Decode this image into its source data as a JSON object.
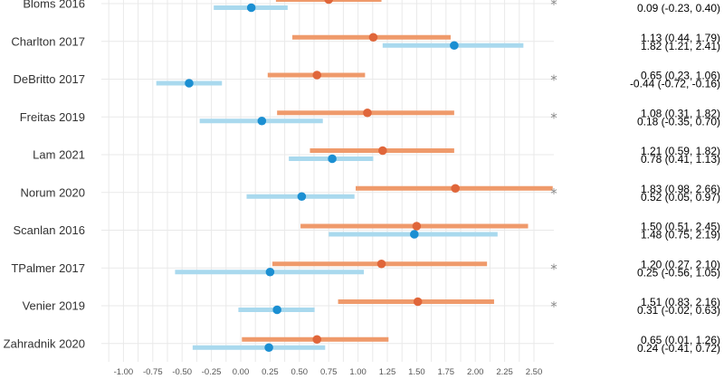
{
  "chart_data": {
    "type": "forest",
    "x_ticks": [
      "-1.00",
      "-0.75",
      "-0.50",
      "-0.25",
      "0.00",
      "0.25",
      "0.50",
      "0.75",
      "1.00",
      "1.25",
      "1.50",
      "1.75",
      "2.00",
      "2.25",
      "2.50"
    ],
    "xlim": [
      -1.2,
      2.75
    ],
    "grid": true,
    "colors": {
      "orange": "#ef9a6b",
      "orange_point": "#e0663a",
      "blue": "#a9d9ee",
      "blue_point": "#1b8fd2",
      "grid": "#e9e9e9",
      "star": "#8a8a8a"
    },
    "series": [
      {
        "key": "orange"
      },
      {
        "key": "blue"
      }
    ],
    "studies": [
      {
        "label": "Bloms 2016",
        "orange": {
          "est": 0.75,
          "lo": 0.3,
          "hi": 1.2,
          "text": ""
        },
        "blue": {
          "est": 0.09,
          "lo": -0.23,
          "hi": 0.4,
          "text": "0.09 (-0.23, 0.40)"
        },
        "star": "*"
      },
      {
        "label": "Charlton 2017",
        "orange": {
          "est": 1.13,
          "lo": 0.44,
          "hi": 1.79,
          "text": "1.13 (0.44, 1.79)"
        },
        "blue": {
          "est": 1.82,
          "lo": 1.21,
          "hi": 2.41,
          "text": "1.82 (1.21, 2.41)"
        },
        "star": ""
      },
      {
        "label": "DeBritto 2017",
        "orange": {
          "est": 0.65,
          "lo": 0.23,
          "hi": 1.06,
          "text": "0.65 (0.23, 1.06)"
        },
        "blue": {
          "est": -0.44,
          "lo": -0.72,
          "hi": -0.16,
          "text": "-0.44 (-0.72, -0.16)"
        },
        "star": "*"
      },
      {
        "label": "Freitas 2019",
        "orange": {
          "est": 1.08,
          "lo": 0.31,
          "hi": 1.82,
          "text": "1.08 (0.31, 1.82)"
        },
        "blue": {
          "est": 0.18,
          "lo": -0.35,
          "hi": 0.7,
          "text": "0.18 (-0.35, 0.70)"
        },
        "star": "*"
      },
      {
        "label": "Lam 2021",
        "orange": {
          "est": 1.21,
          "lo": 0.59,
          "hi": 1.82,
          "text": "1.21 (0.59, 1.82)"
        },
        "blue": {
          "est": 0.78,
          "lo": 0.41,
          "hi": 1.13,
          "text": "0.78 (0.41, 1.13)"
        },
        "star": ""
      },
      {
        "label": "Norum 2020",
        "orange": {
          "est": 1.83,
          "lo": 0.98,
          "hi": 2.66,
          "text": "1.83 (0.98, 2.66)"
        },
        "blue": {
          "est": 0.52,
          "lo": 0.05,
          "hi": 0.97,
          "text": "0.52 (0.05,  0.97)"
        },
        "star": "*"
      },
      {
        "label": "Scanlan 2016",
        "orange": {
          "est": 1.5,
          "lo": 0.51,
          "hi": 2.45,
          "text": "1.50 (0.51, 2.45)"
        },
        "blue": {
          "est": 1.48,
          "lo": 0.75,
          "hi": 2.19,
          "text": "1.48 (0.75, 2.19)"
        },
        "star": ""
      },
      {
        "label": "TPalmer 2017",
        "orange": {
          "est": 1.2,
          "lo": 0.27,
          "hi": 2.1,
          "text": "1.20 (0.27, 2.10)"
        },
        "blue": {
          "est": 0.25,
          "lo": -0.56,
          "hi": 1.05,
          "text": "0.25 (-0.56, 1.05)"
        },
        "star": "*"
      },
      {
        "label": "Venier 2019",
        "orange": {
          "est": 1.51,
          "lo": 0.83,
          "hi": 2.16,
          "text": "1.51 (0.83, 2.16)"
        },
        "blue": {
          "est": 0.31,
          "lo": -0.02,
          "hi": 0.63,
          "text": "0.31 (-0.02, 0.63)"
        },
        "star": "*"
      },
      {
        "label": "Zahradnik 2020",
        "orange": {
          "est": 0.65,
          "lo": 0.01,
          "hi": 1.26,
          "text": "0.65 (0.01, 1.26)"
        },
        "blue": {
          "est": 0.24,
          "lo": -0.41,
          "hi": 0.72,
          "text": "0.24 (-0.41, 0.72)"
        },
        "star": ""
      }
    ]
  }
}
